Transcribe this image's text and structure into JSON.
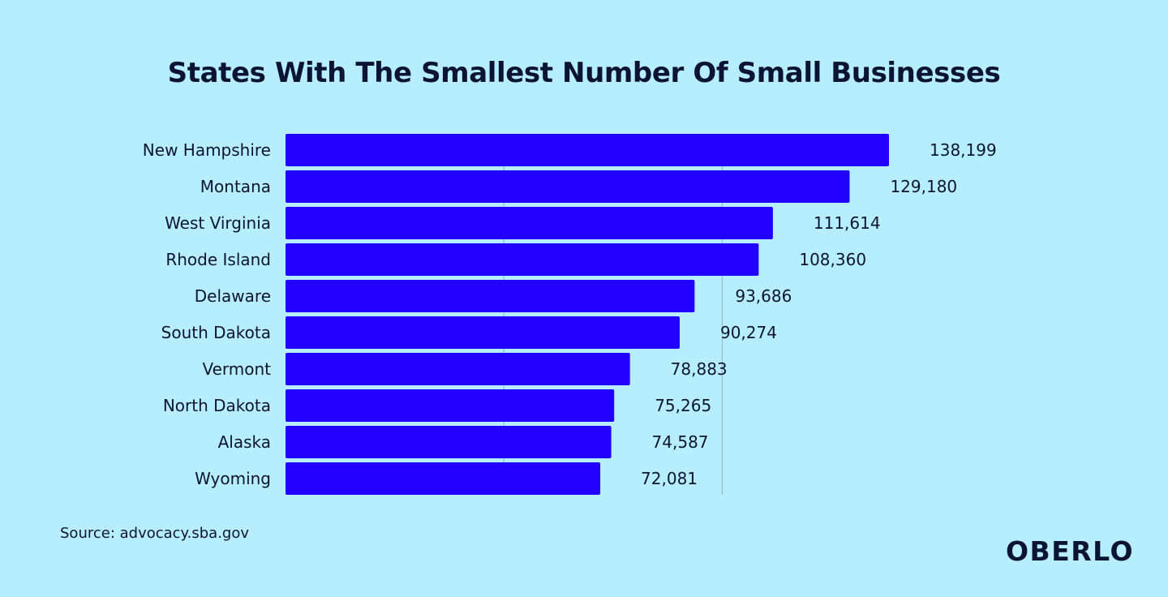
{
  "brand": {
    "logo_text": "OBERLO",
    "background": "#b6eefd",
    "bar_color": "#2200ff",
    "text_color": "#0b1432"
  },
  "source": "Source: advocacy.sba.gov",
  "chart_data": {
    "type": "bar",
    "orientation": "horizontal",
    "title": "States With The Smallest Number Of Small Businesses",
    "xlabel": "",
    "ylabel": "",
    "grid": true,
    "legend": "none",
    "categories": [
      "New Hampshire",
      "Montana",
      "West Virginia",
      "Rhode Island",
      "Delaware",
      "South Dakota",
      "Vermont",
      "North Dakota",
      "Alaska",
      "Wyoming"
    ],
    "values": [
      138199,
      129180,
      111614,
      108360,
      93686,
      90274,
      78883,
      75265,
      74587,
      72081
    ],
    "value_labels": [
      "138,199",
      "129,180",
      "111,614",
      "108,360",
      "93,686",
      "90,274",
      "78,883",
      "75,265",
      "74,587",
      "72,081"
    ],
    "xlim": [
      0,
      138199
    ]
  }
}
